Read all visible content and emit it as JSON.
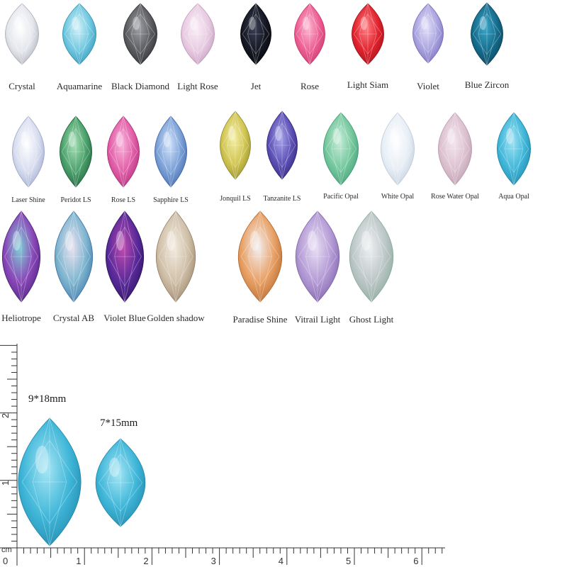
{
  "colors": [
    {
      "name": "Crystal",
      "base": "#e4e6ec",
      "dark": "#a9acb6",
      "light": "#ffffff"
    },
    {
      "name": "Aquamarine",
      "base": "#6fc7df",
      "dark": "#2f8fb1",
      "light": "#d2f1f8"
    },
    {
      "name": "Black Diamond",
      "base": "#5a5c60",
      "dark": "#2c2d31",
      "light": "#9fa1a6"
    },
    {
      "name": "Light Rose",
      "base": "#e7cbe1",
      "dark": "#bf96b9",
      "light": "#fbeef8"
    },
    {
      "name": "Jet",
      "base": "#151722",
      "dark": "#05060b",
      "light": "#3a3f55"
    },
    {
      "name": "Rose",
      "base": "#ec5e92",
      "dark": "#c43468",
      "light": "#fcb8d0"
    },
    {
      "name": "Light Siam",
      "base": "#e0222d",
      "dark": "#9d1018",
      "light": "#ff7f85"
    },
    {
      "name": "Violet",
      "base": "#a9a3dd",
      "dark": "#7268bb",
      "light": "#e3e0fa"
    },
    {
      "name": "Blue Zircon",
      "base": "#146c8c",
      "dark": "#0a3f55",
      "light": "#3ea6c8"
    },
    {
      "name": "Laser Shine",
      "base": "#d7dcef",
      "dark": "#9aa4c9",
      "light": "#ffffff"
    },
    {
      "name": "Peridot LS",
      "base": "#4aa06a",
      "dark": "#1f5d3b",
      "light": "#a8e0b7"
    },
    {
      "name": "Rose LS",
      "base": "#e15da7",
      "dark": "#a82c76",
      "light": "#f9b3dc"
    },
    {
      "name": "Sapphire LS",
      "base": "#7aa0d6",
      "dark": "#3f63a8",
      "light": "#d2e2fa"
    },
    {
      "name": "Jonquil LS",
      "base": "#d0c450",
      "dark": "#8c8a2e",
      "light": "#f4eea6"
    },
    {
      "name": "Tanzanite LS",
      "base": "#5c4fb4",
      "dark": "#2f2577",
      "light": "#a8a4ec"
    },
    {
      "name": "Pacific Opal",
      "base": "#74c79d",
      "dark": "#3f9a72",
      "light": "#c6ecd8"
    },
    {
      "name": "White Opal",
      "base": "#e7eef6",
      "dark": "#bfcbd9",
      "light": "#ffffff"
    },
    {
      "name": "Rose Water Opal",
      "base": "#dcc1cf",
      "dark": "#b89aac",
      "light": "#f4e6ee"
    },
    {
      "name": "Aqua Opal",
      "base": "#3fb6d8",
      "dark": "#1f84a8",
      "light": "#9ee2f3"
    },
    {
      "name": "Heliotrope",
      "base": "#8a47b8",
      "dark": "#47207a",
      "light": "#7fd0d6"
    },
    {
      "name": "Crystal AB",
      "base": "#7fb6d0",
      "dark": "#3a72a6",
      "light": "#eae2f0"
    },
    {
      "name": "Violet Blue",
      "base": "#5a2a9a",
      "dark": "#2a0f5a",
      "light": "#c04ab0"
    },
    {
      "name": "Golden shadow",
      "base": "#cfbfa8",
      "dark": "#957e64",
      "light": "#f3ebdf"
    },
    {
      "name": "Paradise Shine",
      "base": "#e8a064",
      "dark": "#b0652c",
      "light": "#f3eef2"
    },
    {
      "name": "Vitrail Light",
      "base": "#b39ad4",
      "dark": "#7a5ea8",
      "light": "#e8def5"
    },
    {
      "name": "Ghost Light",
      "base": "#bcc6c6",
      "dark": "#86a898",
      "light": "#eef0f2"
    }
  ],
  "sizes": [
    {
      "label": "9*18mm",
      "color": "#3fb6d8"
    },
    {
      "label": "7*15mm",
      "color": "#3fb6d8"
    }
  ],
  "ruler": {
    "unit": "cm",
    "horizontal_numbers": [
      "0",
      "1",
      "2",
      "3",
      "4",
      "5",
      "6"
    ],
    "vertical_numbers": [
      "1",
      "2"
    ]
  }
}
